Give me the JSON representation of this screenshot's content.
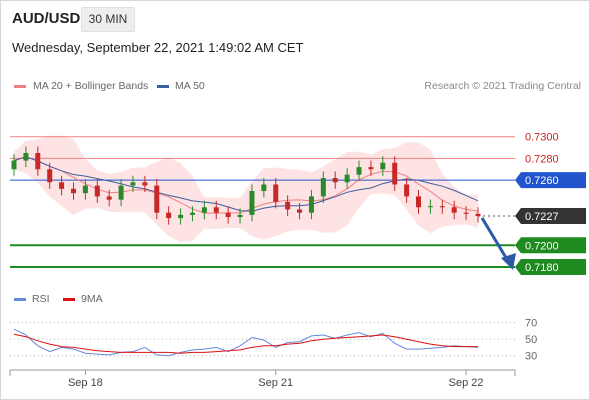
{
  "header": {
    "symbol": "AUD/USD",
    "interval": "30 MIN",
    "datetime": "Wednesday, September 22, 2021 1:49:02 AM CET"
  },
  "legend": {
    "ma20_label": "MA 20 + Bollinger Bands",
    "ma50_label": "MA 50",
    "credit": "Research © 2021 Trading Central",
    "rsi_label": "RSI",
    "rsi_ma_label": "9MA"
  },
  "colors": {
    "ma20": "#f08080",
    "bollinger_fill": "#fde0e0",
    "ma50": "#3a5fa0",
    "up_candle": "#2a8a2a",
    "down_candle": "#c82828",
    "resistance": "#f08080",
    "pivot": "#2255cc",
    "support": "#1f8a1f",
    "last_price": "#333333",
    "arrow": "#2a5aa8",
    "rsi": "#6688dd",
    "rsi_ma": "#dd1111"
  },
  "chart_data": [
    {
      "type": "candlestick",
      "title": "AUD/USD",
      "x_tick_labels": [
        "Sep 18",
        "Sep 21",
        "Sep 22"
      ],
      "ylim": [
        0.7168,
        0.732
      ],
      "indicators": [
        "MA 20 + Bollinger Bands",
        "MA 50"
      ],
      "candle_closes": [
        0.7278,
        0.7285,
        0.727,
        0.7258,
        0.7252,
        0.7248,
        0.7255,
        0.7245,
        0.7242,
        0.7255,
        0.7258,
        0.7255,
        0.723,
        0.7225,
        0.7228,
        0.723,
        0.7235,
        0.723,
        0.7226,
        0.7228,
        0.725,
        0.7256,
        0.724,
        0.7233,
        0.723,
        0.7245,
        0.7262,
        0.7258,
        0.7265,
        0.7272,
        0.727,
        0.7276,
        0.7256,
        0.7245,
        0.7235,
        0.7236,
        0.7235,
        0.723,
        0.7229,
        0.7227
      ],
      "levels": [
        {
          "value": 0.73,
          "label": "0.7300",
          "kind": "resistance"
        },
        {
          "value": 0.728,
          "label": "0.7280",
          "kind": "resistance"
        },
        {
          "value": 0.726,
          "label": "0.7260",
          "kind": "pivot"
        },
        {
          "value": 0.7227,
          "label": "0.7227",
          "kind": "last"
        },
        {
          "value": 0.72,
          "label": "0.7200",
          "kind": "support"
        },
        {
          "value": 0.718,
          "label": "0.7180",
          "kind": "support"
        }
      ],
      "forecast_target": 0.718
    },
    {
      "type": "line",
      "title": "RSI",
      "ylim": [
        20,
        78
      ],
      "y_ticks": [
        30,
        50,
        70
      ],
      "series": [
        {
          "name": "RSI",
          "values": [
            62,
            55,
            42,
            35,
            40,
            38,
            33,
            32,
            31,
            34,
            35,
            40,
            31,
            30,
            34,
            37,
            38,
            40,
            35,
            42,
            52,
            49,
            40,
            46,
            47,
            54,
            55,
            51,
            55,
            58,
            53,
            57,
            45,
            38,
            38,
            39,
            40,
            42,
            41,
            40
          ]
        },
        {
          "name": "9MA",
          "values": [
            56,
            53,
            48,
            44,
            41,
            40,
            38,
            36,
            35,
            34,
            34,
            34,
            34,
            34,
            33,
            34,
            34,
            35,
            36,
            37,
            40,
            42,
            42,
            44,
            45,
            48,
            50,
            51,
            52,
            53,
            54,
            55,
            53,
            50,
            47,
            44,
            42,
            41,
            41,
            41
          ]
        }
      ]
    }
  ]
}
